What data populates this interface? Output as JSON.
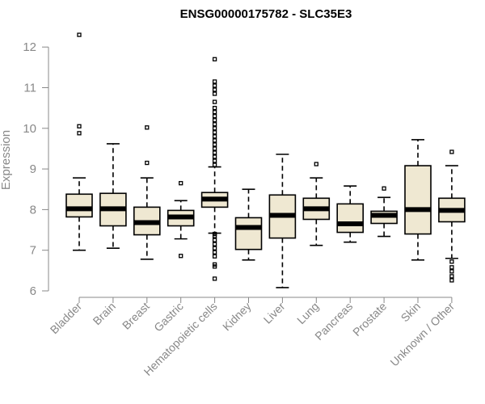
{
  "chart_data": {
    "type": "boxplot",
    "title": "ENSG00000175782 - SLC35E3",
    "xlabel": "",
    "ylabel": "Expression",
    "ylim": [
      6,
      12.3
    ],
    "yticks": [
      6,
      7,
      8,
      9,
      10,
      11,
      12
    ],
    "colors": {
      "box_fill": "#efe8d2",
      "stroke": "#000000",
      "axis": "#888888"
    },
    "categories": [
      "Bladder",
      "Brain",
      "Breast",
      "Gastric",
      "Hematopoietic cells",
      "Kidney",
      "Liver",
      "Lung",
      "Pancreas",
      "Prostate",
      "Skin",
      "Unknown / Other"
    ],
    "boxes": [
      {
        "category": "Bladder",
        "whisker_low": 7.0,
        "q1": 7.82,
        "median": 8.02,
        "q3": 8.38,
        "whisker_high": 8.78,
        "outliers": [
          12.3,
          10.05,
          9.88
        ]
      },
      {
        "category": "Brain",
        "whisker_low": 7.05,
        "q1": 7.6,
        "median": 8.02,
        "q3": 8.4,
        "whisker_high": 9.62,
        "outliers": []
      },
      {
        "category": "Breast",
        "whisker_low": 6.78,
        "q1": 7.38,
        "median": 7.68,
        "q3": 8.06,
        "whisker_high": 8.78,
        "outliers": [
          10.02,
          9.15
        ]
      },
      {
        "category": "Gastric",
        "whisker_low": 7.28,
        "q1": 7.6,
        "median": 7.82,
        "q3": 7.98,
        "whisker_high": 8.22,
        "outliers": [
          8.65,
          6.86
        ]
      },
      {
        "category": "Hematopoietic cells",
        "whisker_low": 7.42,
        "q1": 8.06,
        "median": 8.26,
        "q3": 8.42,
        "whisker_high": 9.05,
        "outliers": [
          11.7,
          11.15,
          11.05,
          10.95,
          10.85,
          10.65,
          10.5,
          10.4,
          10.3,
          10.2,
          10.1,
          10.0,
          9.9,
          9.8,
          9.7,
          9.6,
          9.5,
          9.4,
          9.3,
          9.2,
          9.1,
          7.4,
          7.35,
          7.25,
          7.15,
          7.05,
          6.95,
          6.85,
          6.65,
          6.6,
          6.3
        ]
      },
      {
        "category": "Kidney",
        "whisker_low": 6.76,
        "q1": 7.02,
        "median": 7.56,
        "q3": 7.8,
        "whisker_high": 8.5,
        "outliers": []
      },
      {
        "category": "Liver",
        "whisker_low": 6.08,
        "q1": 7.3,
        "median": 7.86,
        "q3": 8.36,
        "whisker_high": 9.36,
        "outliers": []
      },
      {
        "category": "Lung",
        "whisker_low": 7.12,
        "q1": 7.76,
        "median": 8.02,
        "q3": 8.28,
        "whisker_high": 8.78,
        "outliers": [
          9.12
        ]
      },
      {
        "category": "Pancreas",
        "whisker_low": 7.2,
        "q1": 7.44,
        "median": 7.65,
        "q3": 8.14,
        "whisker_high": 8.58,
        "outliers": []
      },
      {
        "category": "Prostate",
        "whisker_low": 7.34,
        "q1": 7.66,
        "median": 7.86,
        "q3": 7.96,
        "whisker_high": 8.3,
        "outliers": [
          8.52
        ]
      },
      {
        "category": "Skin",
        "whisker_low": 6.76,
        "q1": 7.4,
        "median": 8.0,
        "q3": 9.08,
        "whisker_high": 9.72,
        "outliers": []
      },
      {
        "category": "Unknown / Other",
        "whisker_low": 6.8,
        "q1": 7.7,
        "median": 7.98,
        "q3": 8.28,
        "whisker_high": 9.08,
        "outliers": [
          9.42,
          6.72,
          6.58,
          6.48,
          6.36,
          6.26
        ]
      }
    ]
  }
}
